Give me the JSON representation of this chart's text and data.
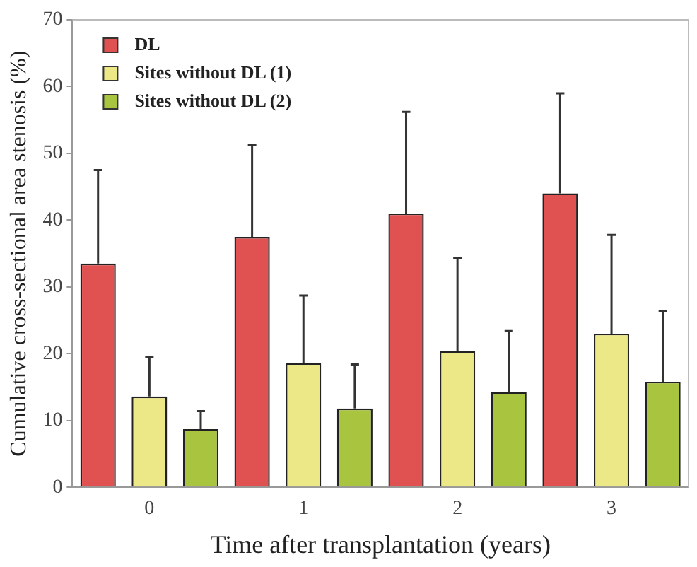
{
  "chart_data": {
    "type": "bar",
    "xlabel": "Time after transplantation (years)",
    "ylabel": "Cumulative cross-sectional area stenosis (%)",
    "categories": [
      "0",
      "1",
      "2",
      "3"
    ],
    "series": [
      {
        "name": "DL",
        "color": "#e05252",
        "values": [
          33.5,
          37.5,
          41,
          44
        ],
        "errors": [
          [
            33.5,
            47.5
          ],
          [
            37.5,
            51.3
          ],
          [
            41,
            56.2
          ],
          [
            44,
            59
          ]
        ]
      },
      {
        "name": "Sites without DL (1)",
        "color": "#ece787",
        "values": [
          13.6,
          18.6,
          20.4,
          23
        ],
        "errors": [
          [
            13.6,
            19.5
          ],
          [
            18.6,
            28.7
          ],
          [
            20.4,
            34.3
          ],
          [
            23,
            37.8
          ]
        ]
      },
      {
        "name": "Sites without DL (2)",
        "color": "#a9c43f",
        "values": [
          8.7,
          11.8,
          14.2,
          15.8
        ],
        "errors": [
          [
            8.7,
            11.4
          ],
          [
            11.8,
            18.4
          ],
          [
            14.2,
            23.4
          ],
          [
            15.8,
            26.4
          ]
        ]
      }
    ],
    "ylim": [
      0,
      70
    ],
    "yticks": [
      0,
      10,
      20,
      30,
      40,
      50,
      60,
      70
    ],
    "grid": false,
    "legend": "top left"
  }
}
